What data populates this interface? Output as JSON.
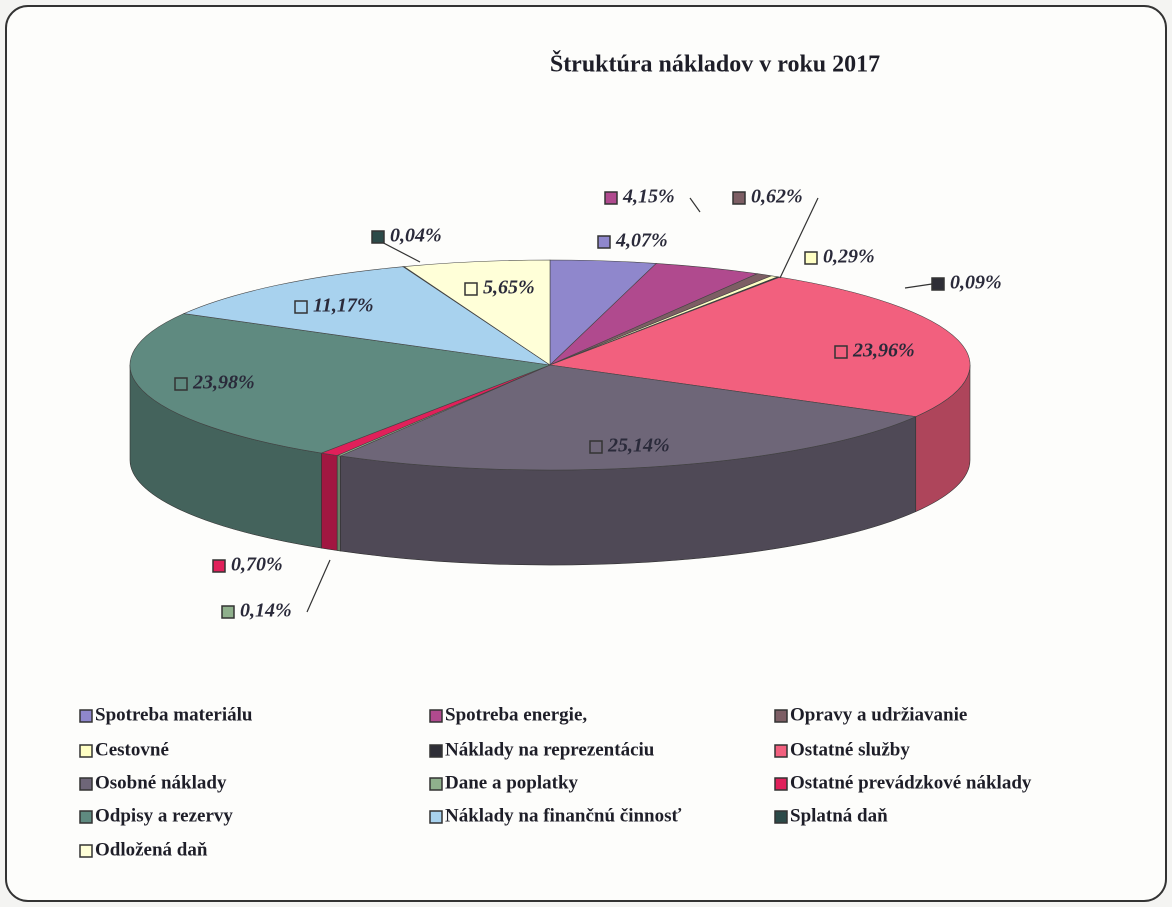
{
  "chart_data": {
    "type": "pie3d",
    "title": "Štruktúra nákladov  v roku 2017",
    "categories": [
      "Spotreba materiálu",
      "Spotreba energie,",
      "Opravy a udržiavanie",
      "Cestovné",
      "Náklady na reprezentáciu",
      "Ostatné služby",
      "Osobné náklady",
      "Dane a poplatky",
      "Ostatné prevádzkové náklady",
      "Odpisy a rezervy",
      "Náklady na finančnú činnosť",
      "Splatná daň",
      "Odložená daň"
    ],
    "values": [
      4.07,
      4.15,
      0.62,
      0.29,
      0.09,
      23.96,
      25.14,
      0.14,
      0.7,
      23.98,
      11.17,
      0.04,
      5.65
    ],
    "value_labels": [
      "4,07%",
      "4,15%",
      "0,62%",
      "0,29%",
      "0,09%",
      "23,96%",
      "25,14%",
      "0,14%",
      "0,70%",
      "23,98%",
      "11,17%",
      "0,04%",
      "5,65%"
    ],
    "colors": [
      "#8f87cc",
      "#b04a8e",
      "#7d5e64",
      "#ffffc4",
      "#2e2e36",
      "#f2607e",
      "#6e6678",
      "#8fb08c",
      "#e0205a",
      "#5f8a80",
      "#a8d2ee",
      "#2c4a48",
      "#ffffd8"
    ]
  }
}
